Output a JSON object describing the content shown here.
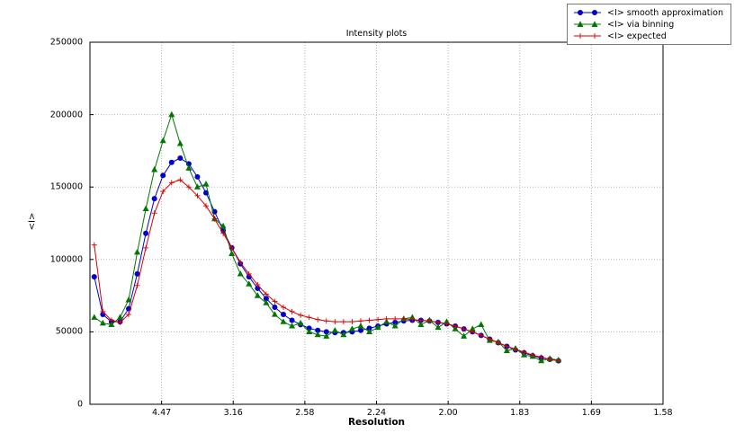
{
  "chart_data": {
    "type": "line",
    "title": "Intensity plots",
    "xlabel": "Resolution",
    "ylabel": "<I>",
    "xlim": [
      0,
      0.4
    ],
    "ylim": [
      0,
      250000
    ],
    "grid": "dotted",
    "legend_position": "top-right",
    "x_ticks": [
      {
        "label": "4.47",
        "value": 0.05
      },
      {
        "label": "3.16",
        "value": 0.1
      },
      {
        "label": "2.58",
        "value": 0.15
      },
      {
        "label": "2.24",
        "value": 0.2
      },
      {
        "label": "2.00",
        "value": 0.25
      },
      {
        "label": "1.83",
        "value": 0.3
      },
      {
        "label": "1.69",
        "value": 0.35
      },
      {
        "label": "1.58",
        "value": 0.4
      }
    ],
    "y_ticks": [
      {
        "label": "0",
        "value": 0
      },
      {
        "label": "50000",
        "value": 50000
      },
      {
        "label": "100000",
        "value": 100000
      },
      {
        "label": "150000",
        "value": 150000
      },
      {
        "label": "200000",
        "value": 200000
      },
      {
        "label": "250000",
        "value": 250000
      }
    ],
    "x": [
      0.003,
      0.009,
      0.015,
      0.021,
      0.027,
      0.033,
      0.039,
      0.045,
      0.051,
      0.057,
      0.063,
      0.069,
      0.075,
      0.081,
      0.087,
      0.093,
      0.099,
      0.105,
      0.111,
      0.117,
      0.123,
      0.129,
      0.135,
      0.141,
      0.147,
      0.153,
      0.159,
      0.165,
      0.171,
      0.177,
      0.183,
      0.189,
      0.195,
      0.201,
      0.207,
      0.213,
      0.219,
      0.225,
      0.231,
      0.237,
      0.243,
      0.249,
      0.255,
      0.261,
      0.267,
      0.273,
      0.279,
      0.285,
      0.291,
      0.297,
      0.303,
      0.309,
      0.315,
      0.321,
      0.327
    ],
    "series": [
      {
        "name": "<I> smooth approximation",
        "color": "#0000cc",
        "marker": "circle",
        "values": [
          88000,
          62000,
          57000,
          57000,
          66000,
          90000,
          118000,
          142000,
          158000,
          167000,
          170000,
          166000,
          157000,
          146000,
          133000,
          120000,
          108000,
          97000,
          88000,
          80000,
          73000,
          67000,
          62000,
          58000,
          55000,
          52500,
          51000,
          50000,
          49500,
          49500,
          50000,
          51000,
          52500,
          54000,
          55500,
          56500,
          57500,
          58000,
          58000,
          57500,
          56500,
          55500,
          54000,
          52000,
          50000,
          47500,
          45000,
          42500,
          40000,
          37500,
          35500,
          33500,
          32000,
          31000,
          30000
        ]
      },
      {
        "name": "<I> via binning",
        "color": "#007700",
        "marker": "triangle",
        "values": [
          60000,
          56000,
          55000,
          60000,
          72000,
          105000,
          135000,
          162000,
          182000,
          200000,
          180000,
          163000,
          150000,
          152000,
          128000,
          123000,
          104000,
          90000,
          83000,
          75000,
          70000,
          62000,
          57000,
          54000,
          56000,
          50000,
          48000,
          47000,
          51000,
          48000,
          52000,
          54000,
          50000,
          53000,
          57000,
          54000,
          59000,
          60000,
          55000,
          58000,
          53000,
          57000,
          52000,
          47000,
          52000,
          55000,
          44000,
          43000,
          37000,
          38500,
          34000,
          33000,
          30000,
          31500,
          30500
        ]
      },
      {
        "name": "<I> expected",
        "color": "#d40000",
        "marker": "plus",
        "values": [
          110000,
          64000,
          58000,
          56500,
          62000,
          82000,
          108000,
          132000,
          147000,
          153000,
          155000,
          150000,
          144000,
          137000,
          128000,
          118000,
          108000,
          98000,
          90000,
          82500,
          76000,
          71000,
          67000,
          64000,
          61500,
          60000,
          58500,
          57500,
          57000,
          57000,
          57000,
          57500,
          58000,
          58500,
          59000,
          59000,
          59000,
          58500,
          58000,
          57500,
          56500,
          55500,
          54000,
          52000,
          50000,
          47500,
          45000,
          42500,
          40000,
          38000,
          36000,
          34000,
          32500,
          31000,
          30000
        ]
      }
    ]
  }
}
